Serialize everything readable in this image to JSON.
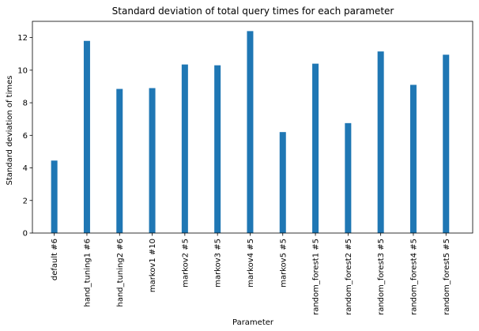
{
  "chart_data": {
    "type": "bar",
    "title": "Standard deviation of total query times for each parameter",
    "xlabel": "Parameter",
    "ylabel": "Standard deviation of times",
    "categories": [
      "default #6",
      "hand_tuning1 #6",
      "hand_tuning2 #6",
      "markov1 #10",
      "markov2 #5",
      "markov3 #5",
      "markov4 #5",
      "markov5 #5",
      "random_forest1 #5",
      "random_forest2 #5",
      "random_forest3 #5",
      "random_forest4 #5",
      "random_forest5 #5"
    ],
    "values": [
      4.45,
      11.8,
      8.85,
      8.9,
      10.35,
      10.3,
      12.4,
      6.2,
      10.4,
      6.75,
      11.15,
      9.1,
      10.95
    ],
    "ylim": [
      0,
      13
    ],
    "yticks": [
      0,
      2,
      4,
      6,
      8,
      10,
      12
    ],
    "bar_color": "#1f77b4",
    "grid": false
  }
}
